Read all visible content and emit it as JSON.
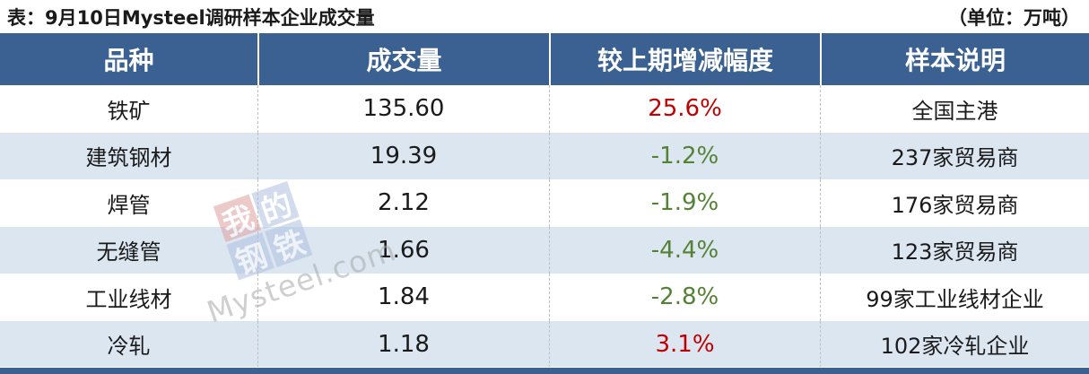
{
  "header": {
    "title": "表：9月10日Mysteel调研样本企业成交量",
    "unit": "（单位：万吨）"
  },
  "table": {
    "headers": [
      "品种",
      "成交量",
      "较上期增减幅度",
      "样本说明"
    ],
    "rows": [
      {
        "variety": "铁矿",
        "volume": "135.60",
        "change": "25.6%",
        "direction": "up",
        "sample": "全国主港"
      },
      {
        "variety": "建筑钢材",
        "volume": "19.39",
        "change": "-1.2%",
        "direction": "down",
        "sample": "237家贸易商"
      },
      {
        "variety": "焊管",
        "volume": "2.12",
        "change": "-1.9%",
        "direction": "down",
        "sample": "176家贸易商"
      },
      {
        "variety": "无缝管",
        "volume": "1.66",
        "change": "-4.4%",
        "direction": "down",
        "sample": "123家贸易商"
      },
      {
        "variety": "工业线材",
        "volume": "1.84",
        "change": "-2.8%",
        "direction": "down",
        "sample": "99家工业线材企业"
      },
      {
        "variety": "冷轧",
        "volume": "1.18",
        "change": "3.1%",
        "direction": "up",
        "sample": "102家冷轧企业"
      }
    ]
  },
  "watermark": {
    "logo_chars": [
      "我",
      "的",
      "钢",
      "铁"
    ],
    "text": "Mysteel.com"
  },
  "colors": {
    "header_bg": "#3a6191",
    "row_alt": "#dce6f1",
    "up_red": "#c00000",
    "down_green": "#548235",
    "text": "#1a1a1a"
  },
  "chart_data": {
    "type": "table",
    "title": "表：9月10日Mysteel调研样本企业成交量",
    "unit": "万吨",
    "columns": [
      "品种",
      "成交量",
      "较上期增减幅度",
      "样本说明"
    ],
    "rows": [
      [
        "铁矿",
        135.6,
        "25.6%",
        "全国主港"
      ],
      [
        "建筑钢材",
        19.39,
        "-1.2%",
        "237家贸易商"
      ],
      [
        "焊管",
        2.12,
        "-1.9%",
        "176家贸易商"
      ],
      [
        "无缝管",
        1.66,
        "-4.4%",
        "123家贸易商"
      ],
      [
        "工业线材",
        1.84,
        "-2.8%",
        "99家工业线材企业"
      ],
      [
        "冷轧",
        1.18,
        "3.1%",
        "102家冷轧企业"
      ]
    ],
    "notes": "positive changes shown in red, negative in green; header dark steel blue with white serif text; rows alternate white and light blue"
  }
}
